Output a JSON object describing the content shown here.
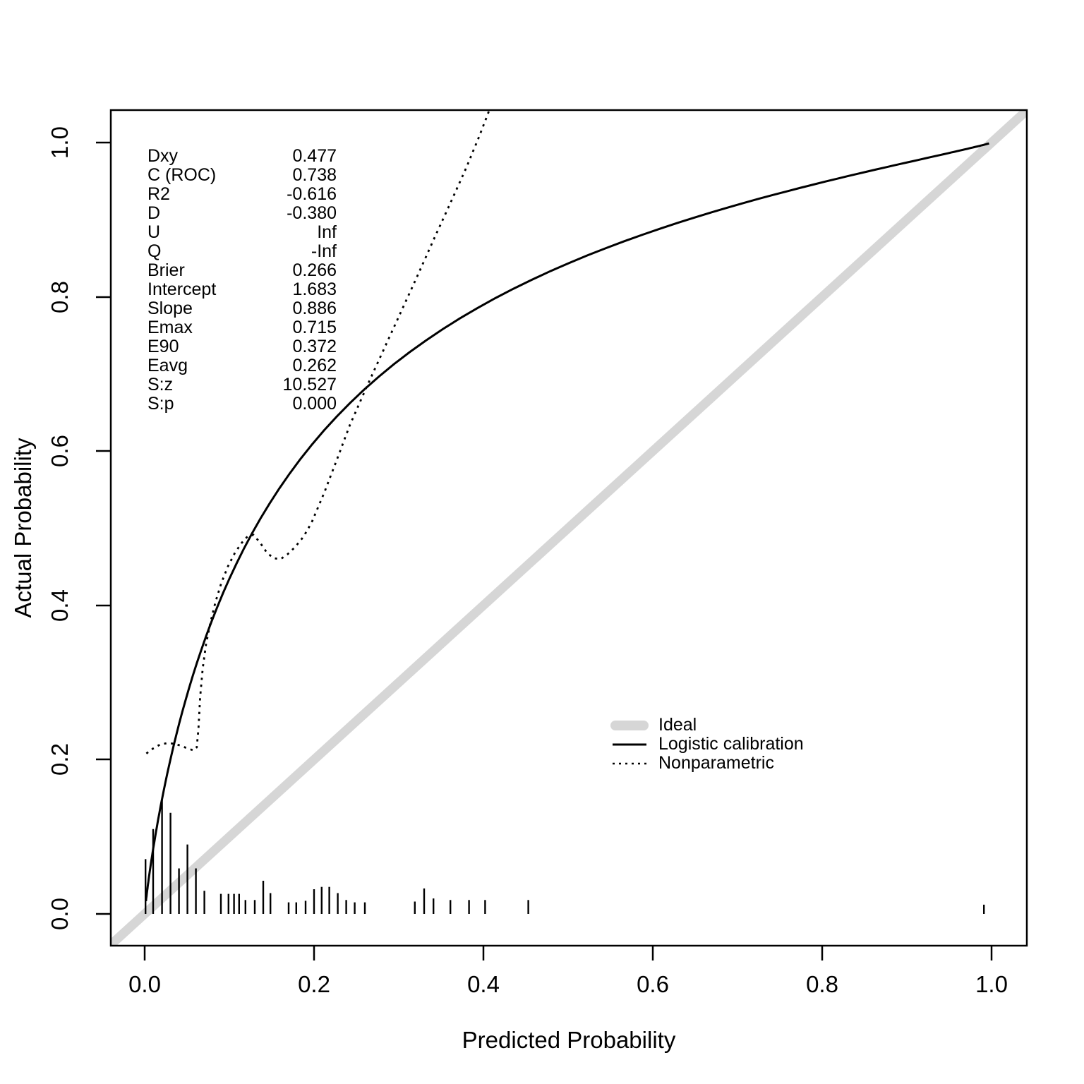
{
  "stats": {
    "rows": [
      {
        "label": "Dxy",
        "value": "0.477"
      },
      {
        "label": "C (ROC)",
        "value": "0.738"
      },
      {
        "label": "R2",
        "value": "-0.616"
      },
      {
        "label": "D",
        "value": "-0.380"
      },
      {
        "label": "U",
        "value": "Inf"
      },
      {
        "label": "Q",
        "value": "-Inf"
      },
      {
        "label": "Brier",
        "value": "0.266"
      },
      {
        "label": "Intercept",
        "value": "1.683"
      },
      {
        "label": "Slope",
        "value": "0.886"
      },
      {
        "label": "Emax",
        "value": "0.715"
      },
      {
        "label": "E90",
        "value": "0.372"
      },
      {
        "label": "Eavg",
        "value": "0.262"
      },
      {
        "label": "S:z",
        "value": "10.527"
      },
      {
        "label": "S:p",
        "value": "0.000"
      }
    ]
  },
  "legend": {
    "items": [
      {
        "label": "Ideal",
        "style": "ideal",
        "color": "#d6d6d6"
      },
      {
        "label": "Logistic calibration",
        "style": "solid",
        "color": "#000000"
      },
      {
        "label": "Nonparametric",
        "style": "dotted",
        "color": "#000000"
      }
    ]
  },
  "chart_data": {
    "type": "line",
    "title": "",
    "xlabel": "Predicted Probability",
    "ylabel": "Actual Probability",
    "xlim": [
      -0.04,
      1.042
    ],
    "ylim": [
      -0.041,
      1.042
    ],
    "grid": false,
    "legend_position": "right-center",
    "x_ticks": [
      "0.0",
      "0.2",
      "0.4",
      "0.6",
      "0.8",
      "1.0"
    ],
    "y_ticks": [
      "0.0",
      "0.2",
      "0.4",
      "0.6",
      "0.8",
      "1.0"
    ],
    "x_tick_values": [
      0.0,
      0.2,
      0.4,
      0.6,
      0.8,
      1.0
    ],
    "y_tick_values": [
      0.0,
      0.2,
      0.4,
      0.6,
      0.8,
      1.0
    ],
    "series": [
      {
        "name": "Ideal",
        "kind": "polyline",
        "color": "#d6d6d6",
        "width": 13,
        "dash": "",
        "points": [
          [
            -0.042,
            -0.042
          ],
          [
            1.044,
            1.044
          ]
        ]
      },
      {
        "name": "Logistic calibration",
        "kind": "logistic",
        "color": "#000000",
        "width": 3,
        "dash": "",
        "intercept": 1.683,
        "slope": 0.886,
        "p_range": [
          0.0015,
          0.997
        ]
      },
      {
        "name": "Nonparametric",
        "kind": "polyline",
        "color": "#000000",
        "width": 2.8,
        "dash": "3.2 6.5",
        "points": [
          [
            0.002,
            0.208
          ],
          [
            0.01,
            0.2145
          ],
          [
            0.018,
            0.2195
          ],
          [
            0.027,
            0.2215
          ],
          [
            0.036,
            0.2205
          ],
          [
            0.044,
            0.2175
          ],
          [
            0.052,
            0.214
          ],
          [
            0.058,
            0.212
          ],
          [
            0.0615,
            0.216
          ],
          [
            0.0635,
            0.24
          ],
          [
            0.0655,
            0.281
          ],
          [
            0.0685,
            0.318
          ],
          [
            0.0725,
            0.35
          ],
          [
            0.0775,
            0.377
          ],
          [
            0.0835,
            0.404
          ],
          [
            0.0905,
            0.429
          ],
          [
            0.0985,
            0.451
          ],
          [
            0.1065,
            0.468
          ],
          [
            0.1145,
            0.481
          ],
          [
            0.1215,
            0.4895
          ],
          [
            0.1285,
            0.4915
          ],
          [
            0.1365,
            0.481
          ],
          [
            0.1445,
            0.468
          ],
          [
            0.1525,
            0.461
          ],
          [
            0.1605,
            0.46
          ],
          [
            0.169,
            0.4665
          ],
          [
            0.178,
            0.476
          ],
          [
            0.1875,
            0.489
          ],
          [
            0.197,
            0.507
          ],
          [
            0.212,
            0.546
          ],
          [
            0.227,
            0.589
          ],
          [
            0.242,
            0.633
          ],
          [
            0.262,
            0.683
          ],
          [
            0.282,
            0.731
          ],
          [
            0.302,
            0.779
          ],
          [
            0.322,
            0.827
          ],
          [
            0.342,
            0.876
          ],
          [
            0.362,
            0.924
          ],
          [
            0.38,
            0.968
          ],
          [
            0.395,
            1.008
          ],
          [
            0.408,
            1.045
          ]
        ]
      }
    ],
    "rug": {
      "baseline": 0.0,
      "color": "#000000",
      "width": 2.4,
      "ticks": [
        [
          0.001,
          0.071
        ],
        [
          0.01,
          0.11
        ],
        [
          0.0205,
          0.148
        ],
        [
          0.0305,
          0.131
        ],
        [
          0.0405,
          0.059
        ],
        [
          0.0505,
          0.09
        ],
        [
          0.0605,
          0.059
        ],
        [
          0.0705,
          0.03
        ],
        [
          0.09,
          0.026
        ],
        [
          0.099,
          0.026
        ],
        [
          0.1055,
          0.026
        ],
        [
          0.1115,
          0.026
        ],
        [
          0.119,
          0.018
        ],
        [
          0.13,
          0.018
        ],
        [
          0.14,
          0.043
        ],
        [
          0.1485,
          0.027
        ],
        [
          0.17,
          0.015
        ],
        [
          0.179,
          0.015
        ],
        [
          0.19,
          0.017
        ],
        [
          0.2,
          0.032
        ],
        [
          0.209,
          0.035
        ],
        [
          0.218,
          0.035
        ],
        [
          0.228,
          0.027
        ],
        [
          0.238,
          0.018
        ],
        [
          0.248,
          0.015
        ],
        [
          0.26,
          0.015
        ],
        [
          0.319,
          0.016
        ],
        [
          0.33,
          0.033
        ],
        [
          0.341,
          0.02
        ],
        [
          0.361,
          0.018
        ],
        [
          0.383,
          0.018
        ],
        [
          0.402,
          0.018
        ],
        [
          0.453,
          0.018
        ],
        [
          0.991,
          0.012
        ]
      ]
    }
  }
}
